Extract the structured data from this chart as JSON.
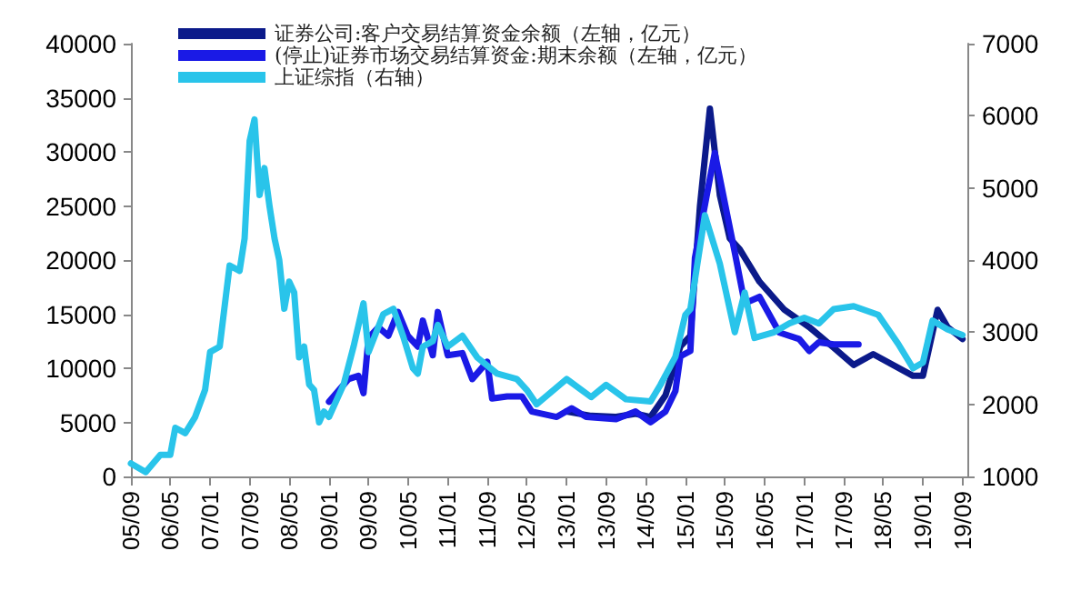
{
  "chart_data": {
    "type": "line",
    "legend": "top left",
    "grid": false,
    "marker": "none",
    "line_style": "solid",
    "xlim": [
      "2005-09",
      "2019-10"
    ],
    "xticks": [
      {
        "value": "2005-09",
        "label": "05/09"
      },
      {
        "value": "2006-05",
        "label": "06/05"
      },
      {
        "value": "2007-01",
        "label": "07/01"
      },
      {
        "value": "2007-09",
        "label": "07/09"
      },
      {
        "value": "2008-05",
        "label": "08/05"
      },
      {
        "value": "2009-01",
        "label": "09/01"
      },
      {
        "value": "2009-09",
        "label": "09/09"
      },
      {
        "value": "2010-05",
        "label": "10/05"
      },
      {
        "value": "2011-01",
        "label": "11/01"
      },
      {
        "value": "2011-09",
        "label": "11/09"
      },
      {
        "value": "2012-05",
        "label": "12/05"
      },
      {
        "value": "2013-01",
        "label": "13/01"
      },
      {
        "value": "2013-09",
        "label": "13/09"
      },
      {
        "value": "2014-05",
        "label": "14/05"
      },
      {
        "value": "2015-01",
        "label": "15/01"
      },
      {
        "value": "2015-09",
        "label": "15/09"
      },
      {
        "value": "2016-05",
        "label": "16/05"
      },
      {
        "value": "2017-01",
        "label": "17/01"
      },
      {
        "value": "2017-09",
        "label": "17/09"
      },
      {
        "value": "2018-05",
        "label": "18/05"
      },
      {
        "value": "2019-01",
        "label": "19/01"
      },
      {
        "value": "2019-09",
        "label": "19/09"
      }
    ],
    "ylim": [
      0,
      40000
    ],
    "yticks": [
      0,
      5000,
      10000,
      15000,
      20000,
      25000,
      30000,
      35000,
      40000
    ],
    "y2lim": [
      1000,
      7000
    ],
    "y2ticks": [
      1000,
      2000,
      3000,
      4000,
      5000,
      6000,
      7000
    ],
    "series": [
      {
        "name": "证券公司:客户交易结算资金余额（左轴，亿元）",
        "color": "#0b1a8a",
        "x": [
          "2013-01",
          "2013-06",
          "2013-11",
          "2014-03",
          "2014-06",
          "2014-09",
          "2014-12",
          "2015-02",
          "2015-04",
          "2015-06",
          "2015-08",
          "2015-10",
          "2015-12",
          "2016-04",
          "2016-09",
          "2017-02",
          "2017-07",
          "2017-11",
          "2018-03",
          "2018-11",
          "2019-01",
          "2019-04",
          "2019-06",
          "2019-09"
        ],
        "values": [
          6000,
          5600,
          5500,
          5800,
          5500,
          7500,
          12000,
          13000,
          25000,
          34000,
          26000,
          22000,
          21000,
          18000,
          15400,
          13800,
          11900,
          10300,
          11300,
          9300,
          9300,
          15400,
          13800,
          12700
        ]
      },
      {
        "name": "(停止)证券市场交易结算资金:期末余额（左轴，亿元）",
        "color": "#1a1ae6",
        "x": [
          "2009-01",
          "2009-05",
          "2009-07",
          "2009-08",
          "2009-09",
          "2009-11",
          "2010-01",
          "2010-03",
          "2010-05",
          "2010-07",
          "2010-08",
          "2010-10",
          "2010-11",
          "2011-01",
          "2011-04",
          "2011-06",
          "2011-09",
          "2011-10",
          "2012-01",
          "2012-04",
          "2012-06",
          "2012-11",
          "2013-02",
          "2013-05",
          "2013-11",
          "2014-03",
          "2014-06",
          "2014-09",
          "2014-11",
          "2014-12",
          "2015-02",
          "2015-03",
          "2015-07",
          "2015-11",
          "2016-01",
          "2016-04",
          "2016-08",
          "2016-12",
          "2017-02",
          "2017-04",
          "2017-07",
          "2017-12"
        ],
        "values": [
          6900,
          9000,
          9300,
          7700,
          12800,
          13800,
          13000,
          15200,
          13000,
          12000,
          14400,
          11200,
          15200,
          11200,
          11400,
          9000,
          10600,
          7200,
          7400,
          7400,
          6000,
          5500,
          6300,
          5500,
          5300,
          6000,
          5000,
          6000,
          7900,
          11100,
          11600,
          20200,
          29900,
          20700,
          16000,
          16600,
          13300,
          12700,
          11600,
          12400,
          12200,
          12200
        ]
      },
      {
        "name": "上证综指（右轴）",
        "color": "#29c4ea",
        "axis": "y2",
        "x": [
          "2005-09",
          "2005-12",
          "2006-03",
          "2006-05",
          "2006-06",
          "2006-08",
          "2006-10",
          "2006-12",
          "2007-01",
          "2007-03",
          "2007-05",
          "2007-07",
          "2007-08",
          "2007-09",
          "2007-10",
          "2007-11",
          "2007-12",
          "2008-01",
          "2008-02",
          "2008-03",
          "2008-04",
          "2008-05",
          "2008-06",
          "2008-07",
          "2008-08",
          "2008-09",
          "2008-10",
          "2008-11",
          "2008-12",
          "2009-01",
          "2009-04",
          "2009-06",
          "2009-08",
          "2009-09",
          "2009-12",
          "2010-02",
          "2010-04",
          "2010-06",
          "2010-07",
          "2010-08",
          "2010-10",
          "2010-11",
          "2011-01",
          "2011-04",
          "2011-07",
          "2011-11",
          "2012-03",
          "2012-05",
          "2012-07",
          "2013-01",
          "2013-06",
          "2013-09",
          "2014-01",
          "2014-06",
          "2014-08",
          "2014-11",
          "2015-01",
          "2015-02",
          "2015-05",
          "2015-08",
          "2015-11",
          "2016-01",
          "2016-03",
          "2016-07",
          "2016-10",
          "2017-01",
          "2017-04",
          "2017-07",
          "2017-11",
          "2018-04",
          "2018-08",
          "2018-11",
          "2019-01",
          "2019-03",
          "2019-06",
          "2019-09"
        ],
        "values": [
          1180,
          1060,
          1300,
          1300,
          1675,
          1600,
          1825,
          2200,
          2725,
          2800,
          3925,
          3850,
          4300,
          5650,
          5950,
          4900,
          5275,
          4750,
          4300,
          4000,
          3325,
          3700,
          3550,
          2650,
          2800,
          2275,
          2200,
          1750,
          1900,
          1825,
          2275,
          2800,
          3400,
          2725,
          3250,
          3325,
          2950,
          2500,
          2425,
          2800,
          2875,
          3100,
          2800,
          2950,
          2650,
          2425,
          2350,
          2200,
          2000,
          2350,
          2100,
          2270,
          2070,
          2040,
          2270,
          2660,
          3240,
          3320,
          4620,
          3950,
          3000,
          3550,
          2920,
          3000,
          3120,
          3200,
          3120,
          3320,
          3360,
          3240,
          2840,
          2500,
          2580,
          3160,
          3040,
          2960
        ]
      }
    ]
  }
}
